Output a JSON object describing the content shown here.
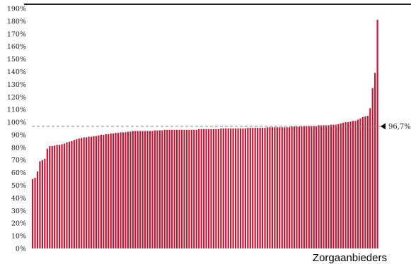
{
  "chart_data": {
    "type": "bar",
    "title": "",
    "xlabel": "Zorgaanbieders",
    "ylabel": "",
    "ylim": [
      0,
      190
    ],
    "y_ticks": [
      "0%",
      "10%",
      "20%",
      "30%",
      "40%",
      "50%",
      "60%",
      "70%",
      "80%",
      "90%",
      "100%",
      "110%",
      "120%",
      "130%",
      "140%",
      "150%",
      "160%",
      "170%",
      "180%",
      "190%"
    ],
    "grid": false,
    "legend": "none",
    "bar_color": "#c8102e",
    "reference_line": {
      "value": 96.7,
      "label": "96,7%",
      "color": "#888888",
      "style": "dashed"
    },
    "values": [
      55,
      56,
      61,
      69,
      70,
      71,
      79,
      81,
      81,
      81.5,
      82,
      82,
      82.5,
      83,
      84,
      84.5,
      85,
      86,
      86.5,
      87,
      87.5,
      88,
      88,
      88.5,
      88.5,
      89,
      89,
      89.5,
      90,
      90,
      90.5,
      90.5,
      91,
      91,
      91.5,
      91.5,
      92,
      92,
      92,
      92.5,
      92.5,
      93,
      93,
      93,
      93,
      93,
      93,
      93,
      93,
      93,
      93.5,
      93.5,
      93.5,
      93.5,
      94,
      94,
      94,
      94,
      94,
      94,
      94,
      94,
      94,
      94,
      94,
      94,
      94,
      94,
      94.5,
      94.5,
      94.5,
      94.5,
      94.5,
      94.5,
      94.5,
      94.5,
      94.5,
      95,
      95,
      95,
      95,
      95,
      95,
      95,
      95,
      95,
      95,
      95,
      95.5,
      95.5,
      95.5,
      95.5,
      95.5,
      95.5,
      95.5,
      95.5,
      96,
      96,
      96,
      96,
      96,
      96,
      96,
      96,
      96,
      96,
      96.5,
      96.5,
      96.5,
      96.5,
      96.5,
      97,
      97,
      97,
      97,
      97,
      97,
      97.5,
      97.5,
      97.5,
      97.5,
      97.5,
      98,
      98,
      98,
      98.5,
      99,
      99.5,
      100,
      100,
      100.5,
      101,
      101,
      102,
      103,
      104,
      104.5,
      105,
      111,
      127,
      139,
      181
    ]
  }
}
